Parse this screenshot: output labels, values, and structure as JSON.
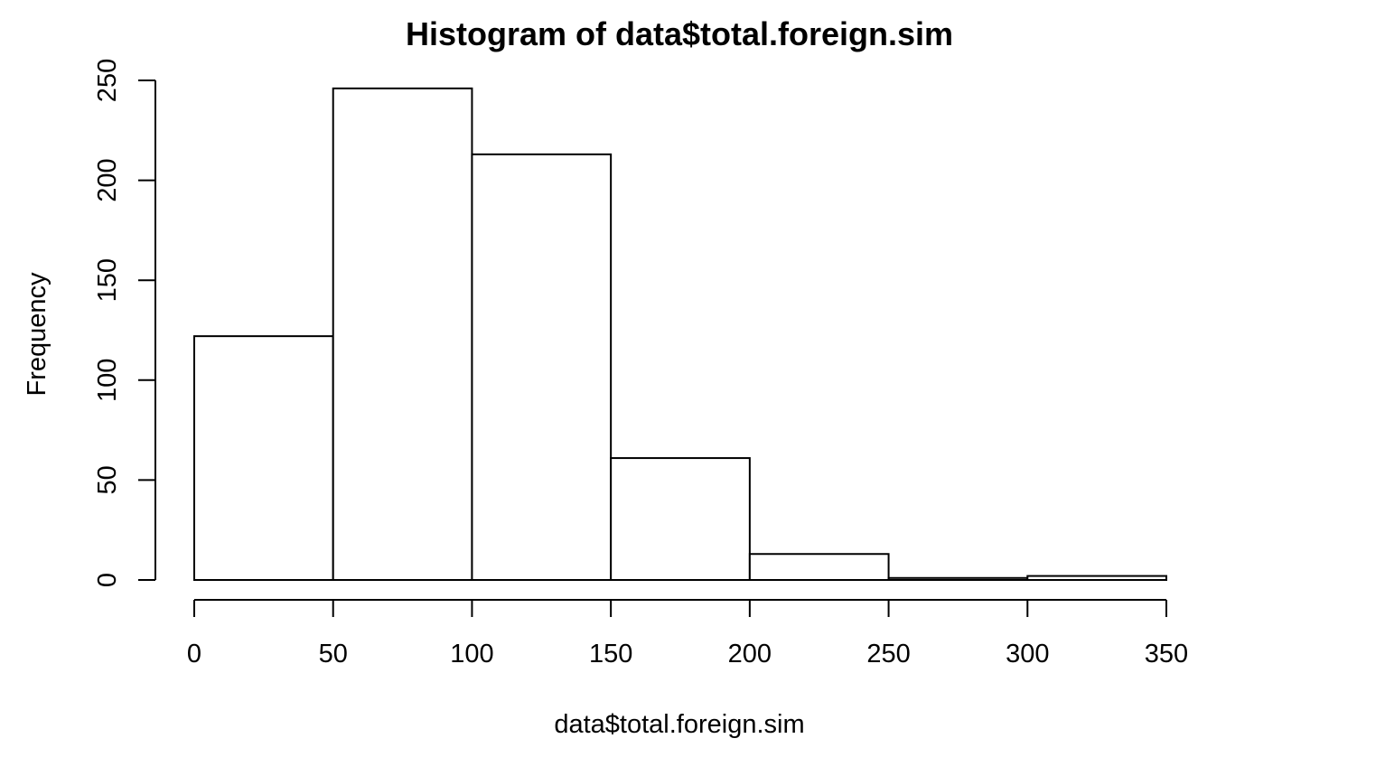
{
  "chart_data": {
    "type": "bar",
    "title": "Histogram of data$total.foreign.sim",
    "xlabel": "data$total.foreign.sim",
    "ylabel": "Frequency",
    "bin_edges": [
      0,
      50,
      100,
      150,
      200,
      250,
      300,
      350
    ],
    "values": [
      122,
      246,
      213,
      61,
      13,
      1,
      2
    ],
    "xlim": [
      0,
      350
    ],
    "ylim": [
      0,
      250
    ],
    "x_ticks": [
      0,
      50,
      100,
      150,
      200,
      250,
      300,
      350
    ],
    "y_ticks": [
      0,
      50,
      100,
      150,
      200,
      250
    ],
    "grid": false,
    "bar_fill": "#ffffff",
    "bar_stroke": "#000000"
  }
}
